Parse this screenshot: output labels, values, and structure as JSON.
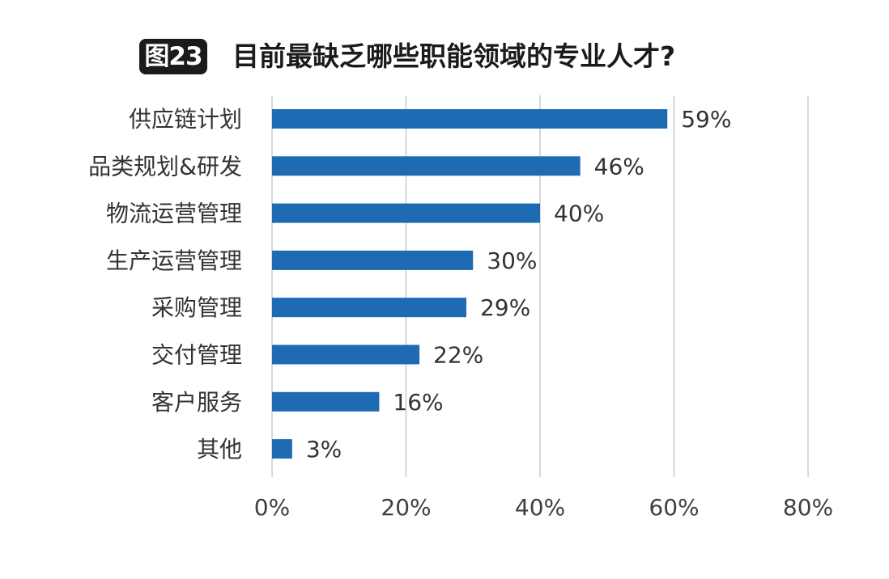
{
  "figure_badge": "图23",
  "chart_data": {
    "type": "bar",
    "orientation": "horizontal",
    "title": "目前最缺乏哪些职能领域的专业人才?",
    "categories": [
      "供应链计划",
      "品类规划&研发",
      "物流运营管理",
      "生产运营管理",
      "采购管理",
      "交付管理",
      "客户服务",
      "其他"
    ],
    "values": [
      59,
      46,
      40,
      30,
      29,
      22,
      16,
      3
    ],
    "value_labels": [
      "59%",
      "46%",
      "40%",
      "30%",
      "29%",
      "22%",
      "16%",
      "3%"
    ],
    "xlim": [
      0,
      80
    ],
    "x_ticks": [
      0,
      20,
      40,
      60,
      80
    ],
    "x_tick_labels": [
      "0%",
      "20%",
      "40%",
      "60%",
      "80%"
    ],
    "xlabel": "",
    "ylabel": "",
    "grid": "vertical",
    "bar_color": "#1f6bb3",
    "grid_color": "#c8c8c8",
    "text_color": "#333333"
  }
}
